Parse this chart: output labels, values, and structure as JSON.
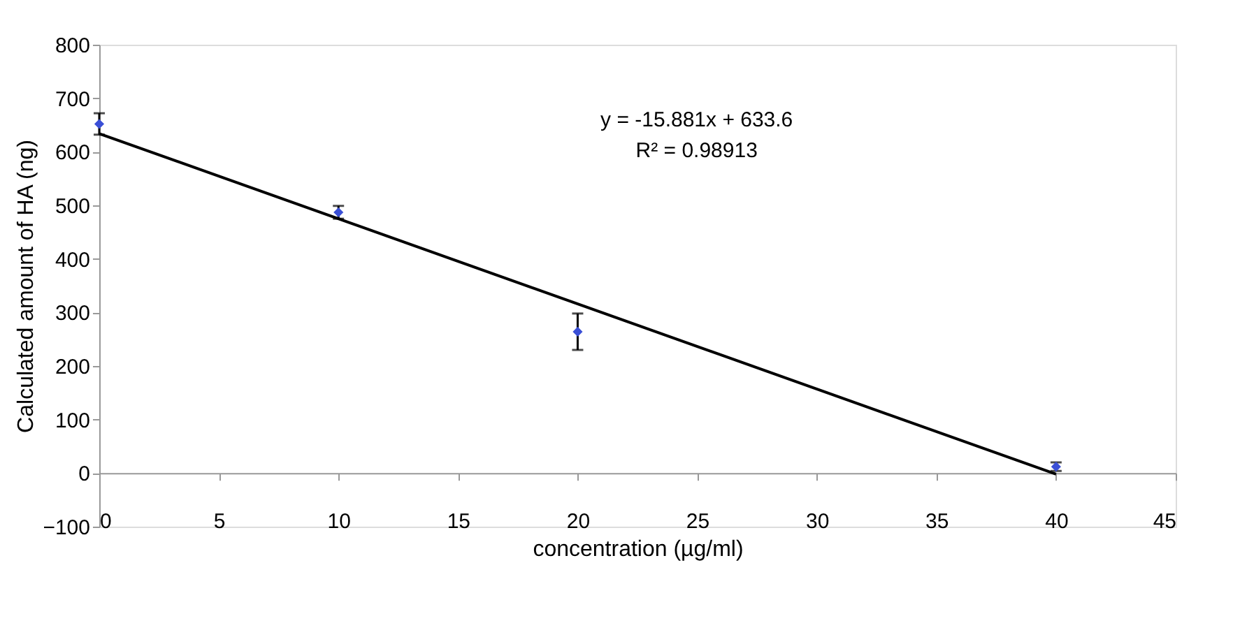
{
  "chart_data": {
    "type": "scatter",
    "xlabel": "concentration (µg/ml)",
    "ylabel": "Calculated amount of HA (ng)",
    "xlim": [
      0,
      45
    ],
    "xticks": [
      0,
      5,
      10,
      15,
      20,
      25,
      30,
      35,
      40,
      45
    ],
    "ylim": [
      -100,
      800
    ],
    "yticks": [
      -100,
      0,
      100,
      200,
      300,
      400,
      500,
      600,
      700,
      800
    ],
    "marker": "diamond",
    "series": [
      {
        "color": "#3a4fd6",
        "x": [
          0,
          10,
          20,
          40
        ],
        "values": [
          652,
          487,
          264,
          12
        ],
        "errors": [
          20,
          12,
          34,
          8
        ]
      },
      {
        "type": "line",
        "color": "#000000",
        "x": [
          0,
          40
        ],
        "values": [
          634,
          -2
        ],
        "line_style": "solid",
        "marker": "none"
      }
    ],
    "annotations": [
      "y = -15.881x + 633.6",
      "R² = 0.98913"
    ]
  }
}
